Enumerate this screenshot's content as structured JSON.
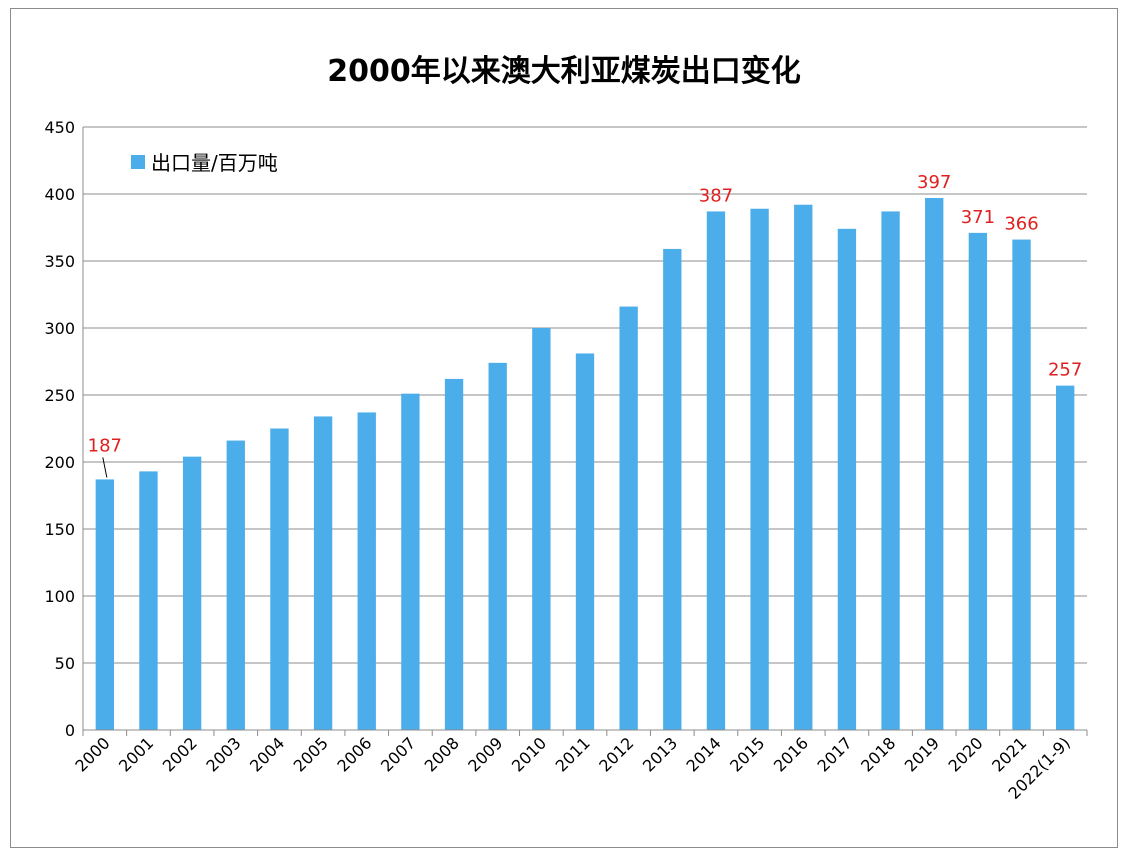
{
  "chart_data": {
    "type": "bar",
    "title": "2000年以来澳大利亚煤炭出口变化",
    "categories": [
      "2000",
      "2001",
      "2002",
      "2003",
      "2004",
      "2005",
      "2006",
      "2007",
      "2008",
      "2009",
      "2010",
      "2011",
      "2012",
      "2013",
      "2014",
      "2015",
      "2016",
      "2017",
      "2018",
      "2019",
      "2020",
      "2021",
      "2022(1-9)"
    ],
    "series": [
      {
        "name": "出口量/百万吨",
        "color": "#4badea",
        "values": [
          187,
          193,
          204,
          216,
          225,
          234,
          237,
          251,
          262,
          274,
          300,
          281,
          316,
          359,
          387,
          389,
          392,
          374,
          387,
          397,
          371,
          366,
          257
        ]
      }
    ],
    "data_labels": [
      {
        "category": "2000",
        "text": "187"
      },
      {
        "category": "2014",
        "text": "387"
      },
      {
        "category": "2019",
        "text": "397"
      },
      {
        "category": "2020",
        "text": "371"
      },
      {
        "category": "2021",
        "text": "366"
      },
      {
        "category": "2022(1-9)",
        "text": "257"
      }
    ],
    "ylim": [
      0,
      450
    ],
    "yticks": [
      0,
      50,
      100,
      150,
      200,
      250,
      300,
      350,
      400,
      450
    ],
    "grid": true,
    "legend_position": "top-left",
    "label_color": "#e02020",
    "xlabel": "",
    "ylabel": ""
  }
}
